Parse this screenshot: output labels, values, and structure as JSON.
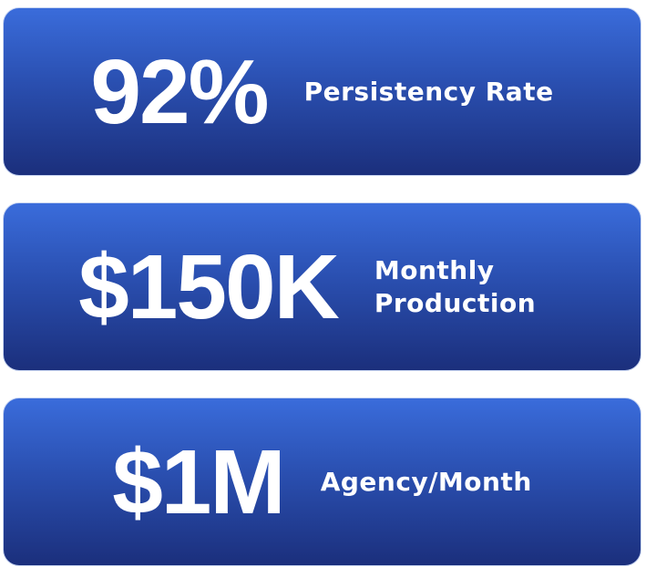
{
  "cards": [
    {
      "value": "92%",
      "label": "Persistency Rate"
    },
    {
      "value": "$150K",
      "label": "Monthly Production"
    },
    {
      "value": "$1M",
      "label": "Agency/Month"
    }
  ]
}
